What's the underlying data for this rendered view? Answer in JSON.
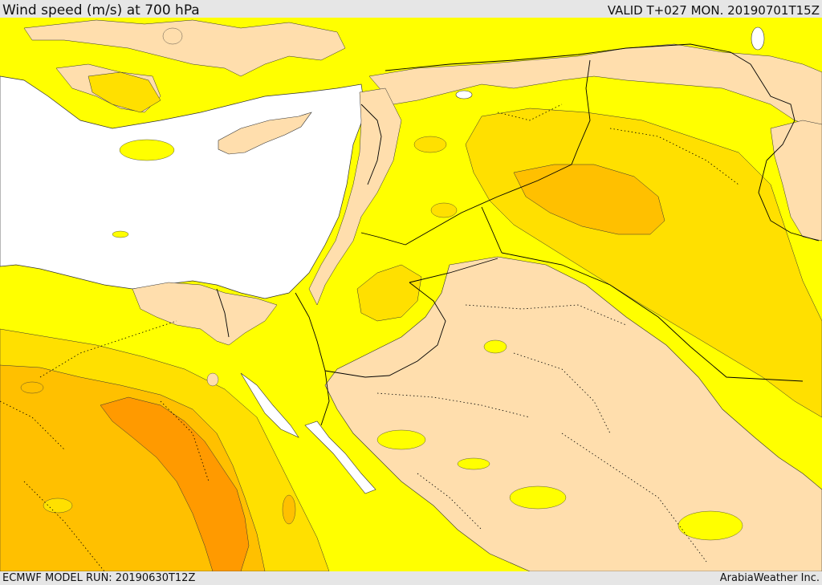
{
  "header": {
    "title": "Wind speed (m/s) at 700 hPa",
    "valid": "VALID T+027 MON. 20190701T15Z"
  },
  "footer": {
    "model_run": "ECMWF MODEL RUN: 20190630T12Z",
    "credit": "ArabiaWeather Inc."
  },
  "colors": {
    "bar": "#e6e6e6",
    "sea": "#ffffff",
    "calm": "#ffdead",
    "yellow": "#ffff00",
    "gold": "#ffe000",
    "amber": "#ffc000",
    "orange": "#ff9a00",
    "border": "#000000"
  },
  "map": {
    "field": "wind speed at 700 hPa",
    "icons": [
      "country-border",
      "coastline",
      "contour-line"
    ]
  }
}
